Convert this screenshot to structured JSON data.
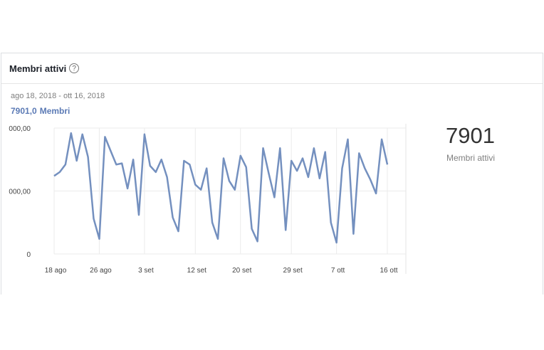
{
  "card": {
    "title": "Membri attivi",
    "help_glyph": "?",
    "help_icon": "question-circle-icon",
    "date_range": "ago 18, 2018 - ott 16, 2018",
    "metric_value": "7901,0",
    "metric_name": "Membri"
  },
  "summary": {
    "value": "7901",
    "label": "Membri attivi"
  },
  "colors": {
    "series": "#7490bf",
    "metric": "#5b7ab5",
    "grid": "#ebebeb"
  },
  "chart_data": {
    "type": "line",
    "title": "",
    "xlabel": "",
    "ylabel": "",
    "x_tick_labels": [
      "18 ago",
      "26 ago",
      "3 set",
      "12 set",
      "20 set",
      "29 set",
      "7 ott",
      "16 ott"
    ],
    "y_tick_labels": [
      "0",
      "000,00",
      "000,00"
    ],
    "ylim": [
      0,
      1
    ],
    "grid": true,
    "x": [
      "2018-08-18",
      "2018-08-19",
      "2018-08-20",
      "2018-08-21",
      "2018-08-22",
      "2018-08-23",
      "2018-08-24",
      "2018-08-25",
      "2018-08-26",
      "2018-08-27",
      "2018-08-28",
      "2018-08-29",
      "2018-08-30",
      "2018-08-31",
      "2018-09-01",
      "2018-09-02",
      "2018-09-03",
      "2018-09-04",
      "2018-09-05",
      "2018-09-06",
      "2018-09-07",
      "2018-09-08",
      "2018-09-09",
      "2018-09-10",
      "2018-09-11",
      "2018-09-12",
      "2018-09-13",
      "2018-09-14",
      "2018-09-15",
      "2018-09-16",
      "2018-09-17",
      "2018-09-18",
      "2018-09-19",
      "2018-09-20",
      "2018-09-21",
      "2018-09-22",
      "2018-09-23",
      "2018-09-24",
      "2018-09-25",
      "2018-09-26",
      "2018-09-27",
      "2018-09-28",
      "2018-09-29",
      "2018-09-30",
      "2018-10-01",
      "2018-10-02",
      "2018-10-03",
      "2018-10-04",
      "2018-10-05",
      "2018-10-06",
      "2018-10-07",
      "2018-10-08",
      "2018-10-09",
      "2018-10-10",
      "2018-10-11",
      "2018-10-12",
      "2018-10-13",
      "2018-10-14",
      "2018-10-15",
      "2018-10-16"
    ],
    "series": [
      {
        "values": [
          0.62,
          0.65,
          0.71,
          0.96,
          0.74,
          0.95,
          0.77,
          0.28,
          0.12,
          0.93,
          0.82,
          0.71,
          0.72,
          0.52,
          0.75,
          0.31,
          0.95,
          0.7,
          0.65,
          0.75,
          0.61,
          0.29,
          0.18,
          0.74,
          0.71,
          0.55,
          0.51,
          0.68,
          0.25,
          0.12,
          0.76,
          0.58,
          0.51,
          0.78,
          0.69,
          0.2,
          0.1,
          0.84,
          0.64,
          0.45,
          0.84,
          0.19,
          0.74,
          0.66,
          0.76,
          0.61,
          0.84,
          0.6,
          0.81,
          0.25,
          0.09,
          0.68,
          0.91,
          0.16,
          0.8,
          0.68,
          0.59,
          0.48,
          0.91,
          0.71
        ]
      }
    ]
  }
}
